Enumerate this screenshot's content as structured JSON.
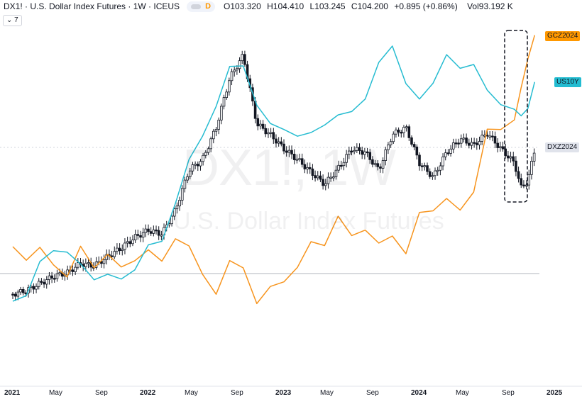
{
  "header": {
    "symbol_title": "DX1! · U.S. Dollar Index Futures · 1W · ICEUS",
    "toggle_letter": "D",
    "ohlc": {
      "o_label": "O",
      "o_value": "103.320",
      "h_label": "H",
      "h_value": "104.410",
      "l_label": "L",
      "l_value": "103.245",
      "c_label": "C",
      "c_value": "104.200",
      "change": "+0.895 (+0.86%)",
      "vol_label": "Vol",
      "vol_value": "93.192 K"
    },
    "collapse_count": "7"
  },
  "watermark": {
    "symbol": "DX1!, 1W",
    "description": "U.S. Dollar Index Futures"
  },
  "chart_data": {
    "type": "line",
    "price_labels": {
      "gold": "GCZ2024",
      "us10y": "US10Y",
      "dxy": "DXZ2024"
    },
    "x_ticks": [
      "2021",
      "May",
      "Sep",
      "2022",
      "May",
      "Sep",
      "2023",
      "May",
      "Sep",
      "2024",
      "May",
      "Sep",
      "2025"
    ],
    "x_ticks_bold": [
      "2021",
      "2022",
      "2023",
      "2024",
      "2025"
    ],
    "x": [
      2021.0,
      2021.1,
      2021.2,
      2021.3,
      2021.4,
      2021.5,
      2021.6,
      2021.7,
      2021.8,
      2021.9,
      2022.0,
      2022.1,
      2022.2,
      2022.3,
      2022.4,
      2022.5,
      2022.6,
      2022.7,
      2022.8,
      2022.9,
      2023.0,
      2023.1,
      2023.2,
      2023.3,
      2023.4,
      2023.5,
      2023.6,
      2023.7,
      2023.8,
      2023.9,
      2024.0,
      2024.1,
      2024.2,
      2024.3,
      2024.4,
      2024.5,
      2024.6,
      2024.7,
      2024.75,
      2024.8,
      2024.85
    ],
    "series": [
      {
        "name": "GCZ2024",
        "color": "#f7941d",
        "line": true,
        "values": [
          348,
          365,
          352,
          372,
          390,
          350,
          375,
          360,
          378,
          365,
          355,
          368,
          335,
          350,
          385,
          415,
          370,
          375,
          430,
          405,
          395,
          380,
          340,
          345,
          308,
          330,
          325,
          345,
          330,
          360,
          300,
          295,
          283,
          295,
          270,
          185,
          180,
          170,
          125,
          80,
          52
        ]
      },
      {
        "name": "US10Y",
        "color": "#26bcd1",
        "line": true,
        "values": [
          425,
          415,
          372,
          352,
          355,
          375,
          392,
          388,
          395,
          378,
          348,
          340,
          285,
          228,
          190,
          150,
          96,
          90,
          150,
          175,
          180,
          195,
          186,
          175,
          165,
          155,
          140,
          90,
          62,
          120,
          140,
          115,
          80,
          95,
          90,
          130,
          145,
          155,
          165,
          150,
          118
        ]
      },
      {
        "name": "DXZ2024",
        "color": "#131722",
        "line": false,
        "values": [
          415,
          410,
          400,
          390,
          385,
          372,
          375,
          362,
          350,
          335,
          325,
          330,
          296,
          240,
          225,
          180,
          110,
          78,
          175,
          190,
          210,
          225,
          243,
          260,
          238,
          210,
          215,
          240,
          190,
          180,
          230,
          250,
          215,
          196,
          205,
          188,
          210,
          230,
          265,
          255,
          210
        ]
      }
    ],
    "highlight_box": "around latest weeks (Sep–Oct 2024)",
    "grid": false
  }
}
